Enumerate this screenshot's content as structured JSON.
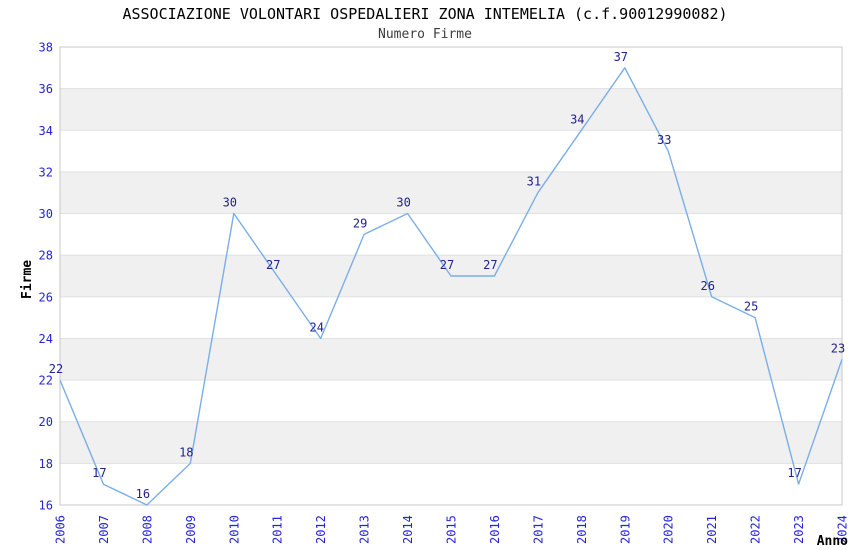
{
  "chart_data": {
    "type": "line",
    "title": "ASSOCIAZIONE VOLONTARI OSPEDALIERI ZONA INTEMELIA (c.f.90012990082)",
    "subtitle": "Numero Firme",
    "xlabel": "Anno",
    "ylabel": "Firme",
    "categories": [
      "2006",
      "2007",
      "2008",
      "2009",
      "2010",
      "2011",
      "2012",
      "2013",
      "2014",
      "2015",
      "2016",
      "2017",
      "2018",
      "2019",
      "2020",
      "2021",
      "2022",
      "2023",
      "2024"
    ],
    "values": [
      22,
      17,
      16,
      18,
      30,
      27,
      24,
      29,
      30,
      27,
      27,
      31,
      34,
      37,
      33,
      26,
      25,
      17,
      23
    ],
    "ylim": [
      16,
      38
    ],
    "ytick_step": 2,
    "grid": "horizontal-alternating-bands",
    "legend": "none",
    "colors": {
      "background": "#ffffff",
      "line": "#7aaee8",
      "band": "#f0f0f0",
      "gridline": "#e0e0e0",
      "plot_border": "#c8c8c8",
      "tick_label": "#2424d6",
      "data_label": "#22228c",
      "title": "#000000",
      "subtitle": "#3c3c3c",
      "axis_title": "#000000"
    }
  }
}
